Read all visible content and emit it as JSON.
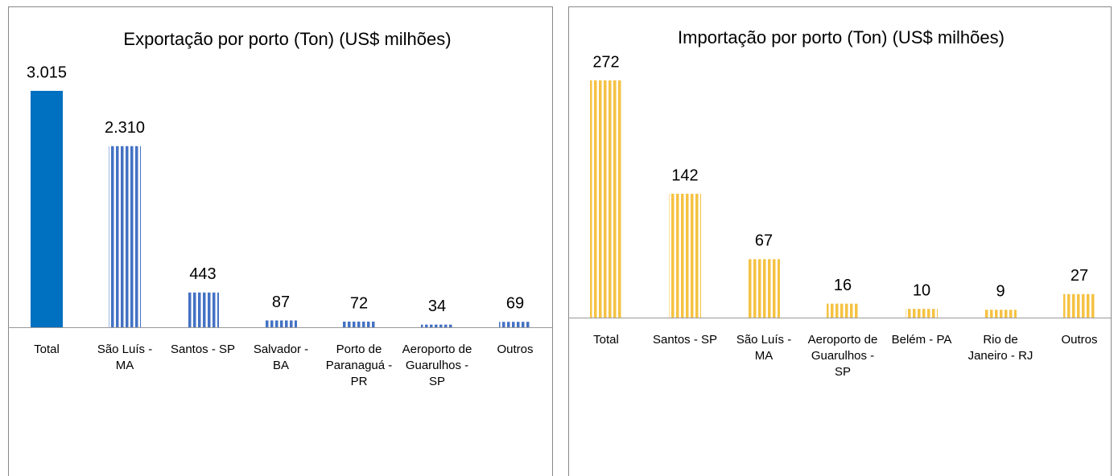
{
  "chart_data": [
    {
      "type": "bar",
      "title": "Exportação por porto (Ton) (US$  milhões)",
      "categories": [
        "Total",
        "São Luís - MA",
        "Santos - SP",
        "Salvador - BA",
        "Porto de Paranaguá - PR",
        "Aeroporto de Guarulhos - SP",
        "Outros"
      ],
      "values": [
        3015,
        2310,
        443,
        87,
        72,
        34,
        69
      ],
      "value_labels": [
        "3.015",
        "2.310",
        "443",
        "87",
        "72",
        "34",
        "69"
      ],
      "colors": [
        "#0070c0",
        "#4472c4",
        "#4472c4",
        "#4472c4",
        "#4472c4",
        "#4472c4",
        "#4472c4"
      ],
      "fills": [
        "solid",
        "stripes",
        "stripes",
        "stripes",
        "stripes",
        "stripes",
        "stripes"
      ]
    },
    {
      "type": "bar",
      "title": "Importação por porto (Ton) (US$ milhões)",
      "categories": [
        "Total",
        "Santos - SP",
        "São Luís - MA",
        "Aeroporto de Guarulhos - SP",
        "Belém - PA",
        "Rio de Janeiro - RJ",
        "Outros"
      ],
      "values": [
        272,
        142,
        67,
        16,
        10,
        9,
        27
      ],
      "colors": [
        "#f5c242",
        "#f5c242",
        "#f5c242",
        "#f5c242",
        "#f5c242",
        "#f5c242",
        "#f5c242"
      ],
      "fills": [
        "stripes",
        "stripes",
        "stripes",
        "stripes",
        "stripes",
        "stripes",
        "stripes"
      ]
    }
  ]
}
